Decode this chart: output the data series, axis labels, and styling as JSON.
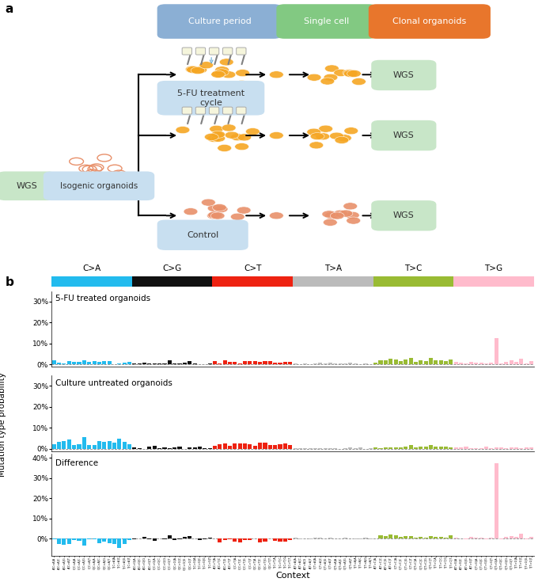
{
  "col_yellow": "#F5A623",
  "col_salmon": "#E8906A",
  "col_green_box": "#C8E6C8",
  "col_blue_box": "#8BAFD4",
  "col_green2_box": "#82C982",
  "col_orange_box": "#E8762C",
  "col_light_blue": "#C8DFF0",
  "mutation_colors": [
    "#22BBEE",
    "#111111",
    "#EE2211",
    "#BBBBBB",
    "#99BB33",
    "#FFBBCC"
  ],
  "mutation_labels": [
    "C>A",
    "C>G",
    "C>T",
    "T>A",
    "T>C",
    "T>G"
  ],
  "subplot_labels": [
    "5-FU treated organoids",
    "Culture untreated organoids",
    "Difference"
  ],
  "yticks_1": [
    0.0,
    0.1,
    0.2,
    0.3
  ],
  "yticklabels_1": [
    "0%",
    "10%",
    "20%",
    "30%"
  ],
  "ylim_1": [
    -0.01,
    0.35
  ],
  "yticks_2": [
    0.0,
    0.1,
    0.2,
    0.3
  ],
  "yticklabels_2": [
    "0%",
    "10%",
    "20%",
    "30%"
  ],
  "ylim_2": [
    -0.01,
    0.35
  ],
  "yticks_3": [
    0.0,
    0.1,
    0.2,
    0.3,
    0.4
  ],
  "yticklabels_3": [
    "0%",
    "10%",
    "20%",
    "30%",
    "40%"
  ],
  "ylim_3": [
    -0.085,
    0.42
  ]
}
